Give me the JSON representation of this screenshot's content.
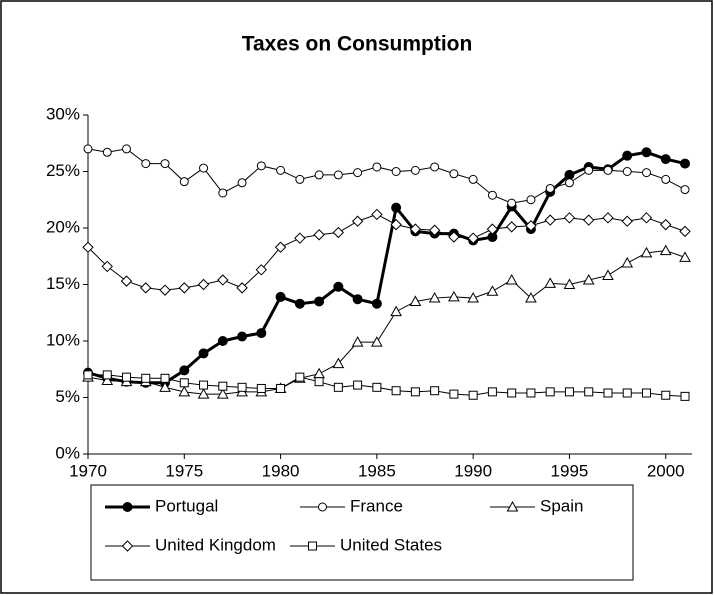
{
  "chart_data": {
    "type": "line",
    "title": "Taxes on Consumption",
    "x": [
      1970,
      1971,
      1972,
      1973,
      1974,
      1975,
      1976,
      1977,
      1978,
      1979,
      1980,
      1981,
      1982,
      1983,
      1984,
      1985,
      1986,
      1987,
      1988,
      1989,
      1990,
      1991,
      1992,
      1993,
      1994,
      1995,
      1996,
      1997,
      1998,
      1999,
      2000,
      2001
    ],
    "xlim": [
      1970,
      2001
    ],
    "xticks": [
      1970,
      1975,
      1980,
      1985,
      1990,
      1995,
      2000
    ],
    "ylim": [
      0,
      30
    ],
    "yticks": [
      {
        "value": 0,
        "label": "0%"
      },
      {
        "value": 5,
        "label": "5%"
      },
      {
        "value": 10,
        "label": "10%"
      },
      {
        "value": 15,
        "label": "15%"
      },
      {
        "value": 20,
        "label": "20%"
      },
      {
        "value": 25,
        "label": "25%"
      },
      {
        "value": 30,
        "label": "30%"
      }
    ],
    "grid": false,
    "legend": "bottom",
    "series": [
      {
        "name": "Portugal",
        "color": "#000000",
        "marker": "filled-circle",
        "line_width": 3,
        "values": [
          7.2,
          6.7,
          6.4,
          6.3,
          6.3,
          7.4,
          8.9,
          10.0,
          10.4,
          10.7,
          13.9,
          13.3,
          13.5,
          14.8,
          13.7,
          13.3,
          21.8,
          19.7,
          19.5,
          19.5,
          18.9,
          19.2,
          21.9,
          19.9,
          23.2,
          24.7,
          25.4,
          25.2,
          26.4,
          26.7,
          26.1,
          25.7
        ]
      },
      {
        "name": "France",
        "color": "#000000",
        "marker": "circle",
        "line_width": 1,
        "values": [
          27.0,
          26.7,
          27.0,
          25.7,
          25.7,
          24.1,
          25.3,
          23.1,
          24.0,
          25.5,
          25.1,
          24.3,
          24.7,
          24.7,
          24.9,
          25.4,
          25.0,
          25.1,
          25.4,
          24.8,
          24.3,
          22.9,
          22.2,
          22.5,
          23.5,
          24.0,
          25.1,
          25.1,
          25.0,
          24.9,
          24.3,
          23.4
        ]
      },
      {
        "name": "Spain",
        "color": "#000000",
        "marker": "triangle",
        "line_width": 1,
        "values": [
          6.8,
          6.5,
          6.4,
          6.4,
          5.9,
          5.5,
          5.3,
          5.3,
          5.5,
          5.5,
          5.8,
          6.7,
          7.1,
          8.0,
          9.9,
          9.9,
          12.6,
          13.5,
          13.8,
          13.9,
          13.8,
          14.4,
          15.4,
          13.8,
          15.1,
          15.0,
          15.4,
          15.8,
          16.9,
          17.8,
          18.0,
          17.4
        ]
      },
      {
        "name": "United Kingdom",
        "color": "#000000",
        "marker": "diamond",
        "line_width": 1,
        "values": [
          18.3,
          16.6,
          15.3,
          14.7,
          14.5,
          14.7,
          15.0,
          15.4,
          14.7,
          16.3,
          18.3,
          19.1,
          19.4,
          19.6,
          20.6,
          21.2,
          20.3,
          19.9,
          19.8,
          19.2,
          19.1,
          19.9,
          20.1,
          20.2,
          20.7,
          20.9,
          20.7,
          20.9,
          20.6,
          20.9,
          20.3,
          19.7
        ]
      },
      {
        "name": "United States",
        "color": "#000000",
        "marker": "square",
        "line_width": 1,
        "values": [
          7.0,
          7.0,
          6.8,
          6.7,
          6.7,
          6.3,
          6.1,
          6.0,
          5.9,
          5.8,
          5.8,
          6.8,
          6.4,
          5.9,
          6.1,
          5.9,
          5.6,
          5.5,
          5.6,
          5.3,
          5.2,
          5.5,
          5.4,
          5.4,
          5.5,
          5.5,
          5.5,
          5.4,
          5.4,
          5.4,
          5.2,
          5.1
        ]
      }
    ]
  }
}
